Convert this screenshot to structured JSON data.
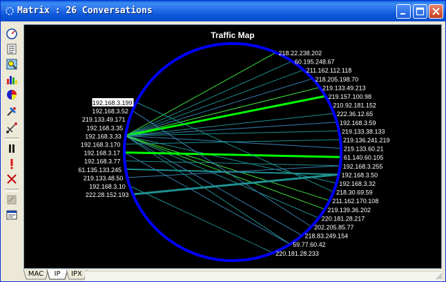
{
  "window": {
    "title": "Matrix : 26 Conversations"
  },
  "toolbar": {
    "icons": [
      "gauge-icon",
      "list-icon",
      "zoom-icon",
      "bar-chart-icon",
      "pie-chart-icon",
      "satellite-icon",
      "network-icon",
      "pause-icon",
      "alert-icon",
      "delete-icon",
      "disabled-tool-icon",
      "properties-icon"
    ]
  },
  "map": {
    "title": "Traffic Map",
    "colors": {
      "ring": "#0000ff",
      "line_light": "#40e040",
      "line_bright": "#00ff00",
      "line_teal": "#1f9090",
      "line_blue": "#3a80b0",
      "label": "#ffffff",
      "selected_bg": "#ffffff",
      "selected_text": "#000000"
    },
    "left_nodes": [
      "192.168.3.199",
      "192.168.3.52",
      "219.133.49.171",
      "192.168.3.35",
      "192.168.3.33",
      "192.168.3.170",
      "192.168.3.17",
      "192.168.3.77",
      "61.135.133.245",
      "219.133.48.50",
      "192.168.3.10",
      "222.28.152.193"
    ],
    "selected_node": "192.168.3.199",
    "right_nodes": [
      "218.22.238.202",
      "60.195.248.67",
      "211.162.112.118",
      "218.205.198.70",
      "219.133.49.213",
      "219.157.100.98",
      "210.92.181.152",
      "222.36.12.65",
      "192.168.3.59",
      "219.133.38.133",
      "219.136.241.219",
      "219.133.60.21",
      "61.140.60.105",
      "192.168.3.255",
      "192.168.3.50",
      "192.168.3.32",
      "218.30.69.59",
      "211.162.170.108",
      "219.139.36.202",
      "220.181.28.217",
      "202.205.85.77",
      "218.83.249.154",
      "59.77.60.42",
      "220.181.28.233"
    ]
  },
  "tabs": [
    "MAC",
    "IP",
    "IPX"
  ],
  "active_tab": "IP"
}
